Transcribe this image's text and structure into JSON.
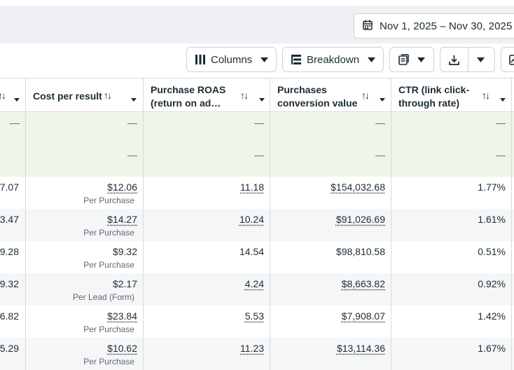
{
  "date_range": "Nov 1, 2025 – Nov 30, 2025",
  "toolbar": {
    "columns_label": "Columns",
    "breakdown_label": "Breakdown"
  },
  "headers": [
    {
      "label": "Cost per result",
      "line2": ""
    },
    {
      "label": "Purchase ROAS",
      "line2": "(return on ad…"
    },
    {
      "label": "Purchases",
      "line2": "conversion value"
    },
    {
      "label": "CTR (link click-",
      "line2": "through rate)"
    }
  ],
  "summary_rows": [
    {
      "c0": "—",
      "c1": "—",
      "c2": "—",
      "c3": "—"
    },
    {
      "c0": "—",
      "c1": "—",
      "c2": "—",
      "c3": "—"
    }
  ],
  "rows": [
    {
      "lead": "7.07",
      "cpr": "$12.06",
      "cpr_sub": "Per Purchase",
      "roas": "11.18",
      "pcv": "$154,032.68",
      "ctr": "1.77%"
    },
    {
      "lead": "3.47",
      "cpr": "$14.27",
      "cpr_sub": "Per Purchase",
      "roas": "10.24",
      "pcv": "$91,026.69",
      "ctr": "1.61%"
    },
    {
      "lead": "9.28",
      "cpr": "$9.32",
      "cpr_sub": "Per Purchase",
      "roas": "14.54",
      "pcv": "$98,810.58",
      "ctr": "0.51%"
    },
    {
      "lead": "9.32",
      "cpr": "$2.17",
      "cpr_sub": "Per Lead (Form)",
      "roas": "4.24",
      "pcv": "$8,663.82",
      "ctr": "0.92%"
    },
    {
      "lead": "6.82",
      "cpr": "$23.84",
      "cpr_sub": "Per Purchase",
      "roas": "5.53",
      "pcv": "$7,908.07",
      "ctr": "1.42%"
    },
    {
      "lead": "5.29",
      "cpr": "$10.62",
      "cpr_sub": "Per Purchase",
      "roas": "11.23",
      "pcv": "$13,114.36",
      "ctr": "1.67%"
    }
  ],
  "colors": {
    "summary_bg": "#eef6e7",
    "stripe_bg": "#f5f6f7",
    "border": "#d6dbe0",
    "text": "#1c2b33",
    "subtext": "#606770"
  }
}
